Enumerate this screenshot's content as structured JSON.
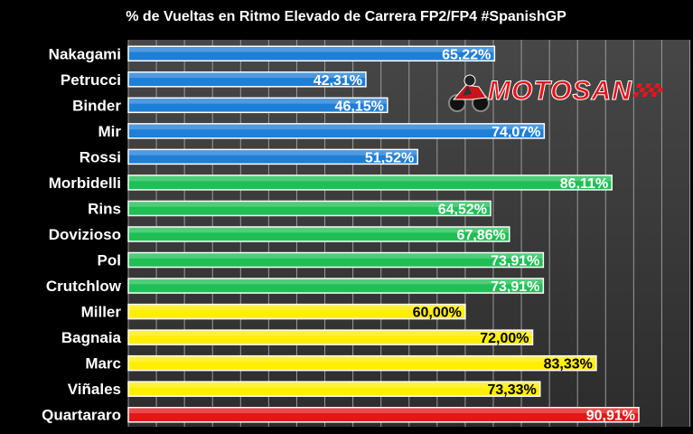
{
  "chart_data": {
    "type": "bar",
    "orientation": "horizontal",
    "title": "% de Vueltas en Ritmo Elevado de Carrera FP2/FP4 #SpanishGP",
    "xlabel": "",
    "ylabel": "",
    "xlim": [
      0,
      100
    ],
    "grid": true,
    "legend": "none",
    "categories": [
      "Nakagami",
      "Petrucci",
      "Binder",
      "Mir",
      "Rossi",
      "Morbidelli",
      "Rins",
      "Dovizioso",
      "Pol",
      "Crutchlow",
      "Miller",
      "Bagnaia",
      "Marc",
      "Viñales",
      "Quartararo"
    ],
    "values": [
      65.22,
      42.31,
      46.15,
      74.07,
      51.52,
      86.11,
      64.52,
      67.86,
      73.91,
      73.91,
      60.0,
      72.0,
      83.33,
      73.33,
      90.91
    ],
    "labels": [
      "65,22%",
      "42,31%",
      "46,15%",
      "74,07%",
      "51,52%",
      "86,11%",
      "64,52%",
      "67,86%",
      "73,91%",
      "73,91%",
      "60,00%",
      "72,00%",
      "83,33%",
      "73,33%",
      "90,91%"
    ],
    "colors": [
      "#1f7ed6",
      "#1f7ed6",
      "#1f7ed6",
      "#1f7ed6",
      "#1f7ed6",
      "#1fbf55",
      "#1fbf55",
      "#1fbf55",
      "#1fbf55",
      "#1fbf55",
      "#ffee00",
      "#ffee00",
      "#ffee00",
      "#ffee00",
      "#e01818"
    ],
    "label_colors": [
      "#ffffff",
      "#ffffff",
      "#ffffff",
      "#ffffff",
      "#ffffff",
      "#ffffff",
      "#ffffff",
      "#ffffff",
      "#ffffff",
      "#ffffff",
      "#000000",
      "#000000",
      "#000000",
      "#000000",
      "#ffffff"
    ]
  },
  "watermark": {
    "text": "MOTOSAN",
    "color": "#e8141b"
  },
  "background_color": "#000000",
  "plot_background_color": "#3a3a3a",
  "gridline_color": "#9a9a9a"
}
